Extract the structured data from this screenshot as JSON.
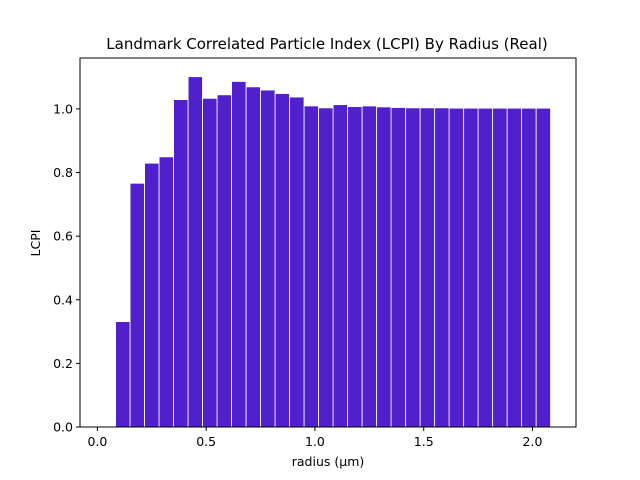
{
  "chart_data": {
    "type": "bar",
    "title": "Landmark Correlated Particle Index (LCPI) By Radius (Real)",
    "xlabel": "radius (μm)",
    "ylabel": "LCPI",
    "xlim": [
      -0.08,
      2.2
    ],
    "ylim": [
      0,
      1.16
    ],
    "bar_width": 0.0625,
    "color": "#5020cc",
    "grid": false,
    "legend": "none",
    "x_ticks": [
      {
        "value": 0.0,
        "label": "0.0"
      },
      {
        "value": 0.5,
        "label": "0.5"
      },
      {
        "value": 1.0,
        "label": "1.0"
      },
      {
        "value": 1.5,
        "label": "1.5"
      },
      {
        "value": 2.0,
        "label": "2.0"
      }
    ],
    "y_ticks": [
      {
        "value": 0.0,
        "label": "0.0"
      },
      {
        "value": 0.2,
        "label": "0.2"
      },
      {
        "value": 0.4,
        "label": "0.4"
      },
      {
        "value": 0.6,
        "label": "0.6"
      },
      {
        "value": 0.8,
        "label": "0.8"
      },
      {
        "value": 1.0,
        "label": "1.0"
      }
    ],
    "x": [
      0.05,
      0.1167,
      0.1833,
      0.25,
      0.3167,
      0.3833,
      0.45,
      0.5167,
      0.5833,
      0.65,
      0.7167,
      0.7833,
      0.85,
      0.9167,
      0.9833,
      1.05,
      1.1167,
      1.1833,
      1.25,
      1.3167,
      1.3833,
      1.45,
      1.5167,
      1.5833,
      1.65,
      1.7167,
      1.7833,
      1.85,
      1.9167,
      1.9833,
      2.05
    ],
    "values": [
      0.0,
      0.33,
      0.765,
      0.828,
      0.848,
      1.028,
      1.1,
      1.032,
      1.043,
      1.085,
      1.068,
      1.058,
      1.047,
      1.036,
      1.008,
      1.002,
      1.012,
      1.006,
      1.008,
      1.005,
      1.003,
      1.002,
      1.002,
      1.002,
      1.001,
      1.001,
      1.001,
      1.001,
      1.001,
      1.001,
      1.001
    ]
  }
}
